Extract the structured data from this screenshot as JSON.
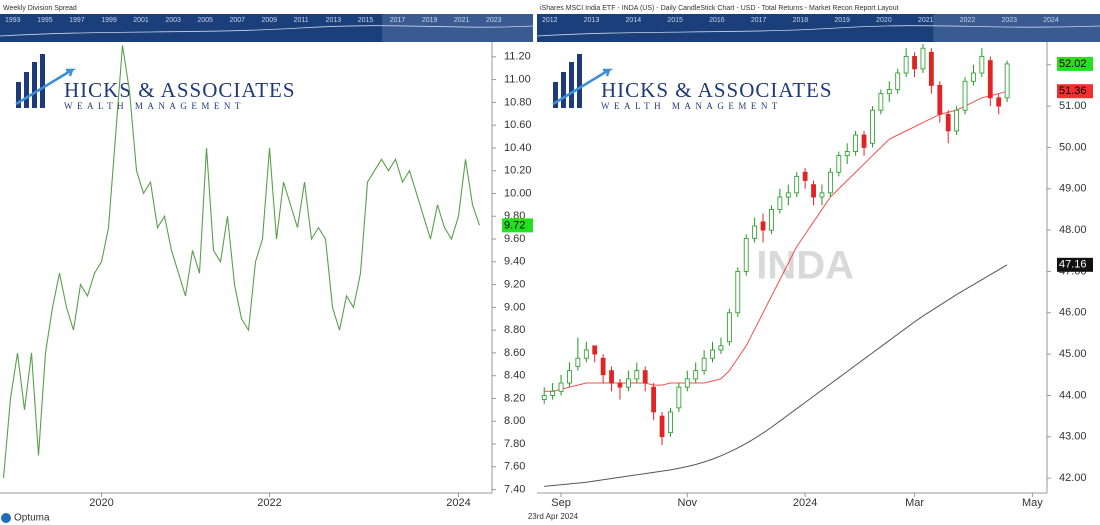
{
  "logo": {
    "name": "HICKS & ASSOCIATES",
    "tagline": "WEALTH MANAGEMENT"
  },
  "footer": {
    "brand": "Optuma",
    "date": "23rd Apr 2024"
  },
  "chart_data": [
    {
      "type": "line",
      "title": "Weekly Division Spread",
      "color": "#5aa04a",
      "navigator": [
        "1993",
        "1995",
        "1997",
        "1999",
        "2001",
        "2003",
        "2005",
        "2007",
        "2009",
        "2011",
        "2013",
        "2015",
        "2017",
        "2019",
        "2021",
        "2023"
      ],
      "categories": [
        null,
        null,
        null,
        null,
        null,
        null,
        null,
        null,
        null,
        null,
        null,
        null,
        null,
        null,
        "2020",
        null,
        null,
        null,
        null,
        null,
        null,
        null,
        null,
        null,
        null,
        null,
        null,
        null,
        null,
        null,
        null,
        null,
        null,
        null,
        null,
        null,
        null,
        null,
        "2022",
        null,
        null,
        null,
        null,
        null,
        null,
        null,
        null,
        null,
        null,
        null,
        null,
        null,
        null,
        null,
        null,
        null,
        null,
        null,
        null,
        null,
        null,
        null,
        null,
        null,
        null,
        "2024",
        null,
        null,
        null,
        null
      ],
      "values": [
        7.5,
        8.2,
        8.6,
        8.1,
        8.6,
        7.7,
        8.6,
        9.0,
        9.3,
        9.0,
        8.8,
        9.2,
        9.1,
        9.3,
        9.4,
        9.7,
        10.5,
        11.3,
        10.9,
        10.2,
        10.0,
        10.1,
        9.7,
        9.8,
        9.5,
        9.3,
        9.1,
        9.5,
        9.3,
        10.4,
        9.5,
        9.4,
        9.8,
        9.2,
        8.9,
        8.8,
        9.4,
        9.6,
        10.4,
        9.6,
        10.1,
        9.9,
        9.7,
        10.1,
        9.6,
        9.7,
        9.6,
        9.0,
        8.8,
        9.1,
        9.0,
        9.3,
        10.1,
        10.2,
        10.3,
        10.2,
        10.3,
        10.1,
        10.2,
        10.0,
        9.8,
        9.6,
        9.9,
        9.7,
        9.6,
        9.8,
        10.3,
        9.9,
        9.72,
        null
      ],
      "ylim": [
        7.37,
        11.33
      ],
      "yticks": [
        {
          "value": 7.4,
          "label": "7.40"
        },
        {
          "value": 7.6,
          "label": "7.60"
        },
        {
          "value": 7.8,
          "label": "7.80"
        },
        {
          "value": 8.0,
          "label": "8.00"
        },
        {
          "value": 8.2,
          "label": "8.20"
        },
        {
          "value": 8.4,
          "label": "8.40"
        },
        {
          "value": 8.6,
          "label": "8.60"
        },
        {
          "value": 8.8,
          "label": "8.80"
        },
        {
          "value": 9.0,
          "label": "9.00"
        },
        {
          "value": 9.2,
          "label": "9.20"
        },
        {
          "value": 9.4,
          "label": "9.40"
        },
        {
          "value": 9.6,
          "label": "9.60"
        },
        {
          "value": 9.8,
          "label": "9.80"
        },
        {
          "value": 10.0,
          "label": "10.00"
        },
        {
          "value": 10.2,
          "label": "10.20"
        },
        {
          "value": 10.4,
          "label": "10.40"
        },
        {
          "value": 10.6,
          "label": "10.60"
        },
        {
          "value": 10.8,
          "label": "10.80"
        },
        {
          "value": 11.0,
          "label": "11.00"
        },
        {
          "value": 11.2,
          "label": "11.20"
        }
      ],
      "last_color": "#22e022"
    },
    {
      "type": "candlestick",
      "title": "iShares MSCI India ETF - INDA (US) - Daily CandleStick Chart - USD - Total Returns - Market Recon Report Layout",
      "watermark": "INDA",
      "up_color": "#1f9a1f",
      "down_color": "#e02424",
      "navigator": [
        "2012",
        "2013",
        "2014",
        "2015",
        "2016",
        "2017",
        "2018",
        "2019",
        "2020",
        "2021",
        "2022",
        "2023",
        "2024"
      ],
      "categories": [
        null,
        null,
        "Sep",
        null,
        null,
        null,
        null,
        null,
        null,
        null,
        null,
        null,
        null,
        null,
        null,
        null,
        null,
        "Nov",
        null,
        null,
        null,
        null,
        null,
        null,
        null,
        null,
        null,
        null,
        null,
        null,
        null,
        "2024",
        null,
        null,
        null,
        null,
        null,
        null,
        null,
        null,
        null,
        null,
        null,
        null,
        "Mar",
        null,
        null,
        null,
        null,
        null,
        null,
        null,
        null,
        null,
        null,
        null,
        null,
        null,
        "May",
        null
      ],
      "open": [
        43.9,
        44.0,
        44.1,
        44.3,
        44.7,
        44.9,
        45.2,
        44.9,
        44.6,
        44.3,
        44.2,
        44.4,
        44.6,
        44.2,
        43.5,
        43.1,
        43.7,
        44.2,
        44.4,
        44.6,
        44.9,
        45.1,
        45.3,
        46.0,
        47.0,
        47.8,
        48.2,
        48.0,
        48.5,
        48.8,
        48.9,
        49.4,
        49.1,
        48.8,
        48.9,
        49.4,
        49.8,
        49.9,
        50.3,
        50.1,
        50.9,
        51.3,
        51.4,
        51.8,
        52.2,
        51.9,
        52.3,
        51.5,
        50.8,
        50.4,
        50.9,
        51.6,
        51.8,
        52.1,
        51.2,
        51.2,
        null,
        null,
        null,
        null
      ],
      "high": [
        44.2,
        44.3,
        44.5,
        44.8,
        45.4,
        45.3,
        45.2,
        45.0,
        44.7,
        44.4,
        44.6,
        44.8,
        44.7,
        44.3,
        43.6,
        43.7,
        44.3,
        44.6,
        44.8,
        45.1,
        45.3,
        45.4,
        46.1,
        47.1,
        47.9,
        48.3,
        48.4,
        48.6,
        49.0,
        49.1,
        49.4,
        49.5,
        49.2,
        49.1,
        49.5,
        49.9,
        50.1,
        50.4,
        50.4,
        51.0,
        51.4,
        51.6,
        51.9,
        52.4,
        52.3,
        52.5,
        52.4,
        51.6,
        50.9,
        51.0,
        51.7,
        52.0,
        52.4,
        52.2,
        51.3,
        52.1,
        null,
        null,
        null,
        null
      ],
      "low": [
        43.8,
        43.9,
        44.0,
        44.2,
        44.6,
        44.8,
        44.8,
        44.3,
        44.1,
        43.9,
        44.1,
        44.3,
        44.1,
        43.4,
        42.8,
        43.0,
        43.6,
        44.1,
        44.3,
        44.5,
        44.8,
        45.0,
        45.2,
        45.9,
        46.9,
        47.7,
        47.7,
        47.9,
        48.4,
        48.6,
        48.8,
        49.0,
        48.6,
        48.6,
        48.8,
        49.3,
        49.6,
        49.8,
        49.8,
        50.0,
        50.8,
        51.1,
        51.3,
        51.7,
        51.7,
        51.8,
        51.3,
        50.6,
        50.1,
        50.3,
        50.8,
        51.5,
        51.7,
        51.0,
        50.8,
        51.1,
        null,
        null,
        null,
        null
      ],
      "close": [
        44.0,
        44.1,
        44.3,
        44.6,
        44.9,
        45.1,
        45.0,
        44.5,
        44.3,
        44.2,
        44.4,
        44.6,
        44.3,
        43.6,
        43.0,
        43.6,
        44.2,
        44.4,
        44.6,
        44.9,
        45.1,
        45.2,
        46.0,
        47.0,
        47.8,
        48.1,
        48.0,
        48.5,
        48.8,
        48.9,
        49.3,
        49.2,
        48.8,
        48.9,
        49.4,
        49.8,
        49.9,
        50.3,
        50.0,
        50.9,
        51.3,
        51.4,
        51.8,
        52.2,
        51.9,
        52.4,
        51.5,
        50.8,
        50.4,
        50.9,
        51.6,
        51.8,
        52.2,
        51.2,
        51.0,
        52.02,
        null,
        null,
        null,
        null
      ],
      "overlays": [
        {
          "color": "#f05050",
          "values": [
            44.1,
            44.1,
            44.15,
            44.2,
            44.25,
            44.3,
            44.3,
            44.3,
            44.3,
            44.3,
            44.3,
            44.3,
            44.3,
            44.25,
            44.25,
            44.3,
            44.3,
            44.3,
            44.3,
            44.3,
            44.35,
            44.4,
            44.6,
            44.9,
            45.2,
            45.6,
            46.0,
            46.4,
            46.8,
            47.2,
            47.6,
            47.9,
            48.2,
            48.5,
            48.8,
            49.0,
            49.2,
            49.4,
            49.6,
            49.8,
            50.0,
            50.2,
            50.3,
            50.4,
            50.5,
            50.6,
            50.7,
            50.8,
            50.85,
            50.9,
            51.0,
            51.1,
            51.2,
            51.25,
            51.3,
            51.36,
            null,
            null,
            null,
            null
          ]
        },
        {
          "color": "#555555",
          "values": [
            41.8,
            41.82,
            41.84,
            41.86,
            41.88,
            41.9,
            41.93,
            41.96,
            41.99,
            42.02,
            42.05,
            42.08,
            42.11,
            42.14,
            42.17,
            42.2,
            42.24,
            42.28,
            42.33,
            42.39,
            42.46,
            42.54,
            42.63,
            42.73,
            42.84,
            42.96,
            43.09,
            43.23,
            43.38,
            43.53,
            43.68,
            43.83,
            43.98,
            44.13,
            44.28,
            44.43,
            44.58,
            44.73,
            44.88,
            45.03,
            45.18,
            45.33,
            45.48,
            45.63,
            45.78,
            45.92,
            46.05,
            46.18,
            46.31,
            46.44,
            46.56,
            46.68,
            46.8,
            46.92,
            47.04,
            47.16,
            null,
            null,
            null,
            null
          ]
        }
      ],
      "ylim": [
        41.64,
        52.55
      ],
      "yticks": [
        {
          "value": 42,
          "label": "42.00"
        },
        {
          "value": 43,
          "label": "43.00"
        },
        {
          "value": 44,
          "label": "44.00"
        },
        {
          "value": 45,
          "label": "45.00"
        },
        {
          "value": 46,
          "label": "46.00"
        },
        {
          "value": 47,
          "label": "47.00"
        },
        {
          "value": 48,
          "label": "48.00"
        },
        {
          "value": 49,
          "label": "49.00"
        },
        {
          "value": 50,
          "label": "50.00"
        },
        {
          "value": 51,
          "label": "51.00"
        },
        {
          "value": 52,
          "label": "52.00"
        }
      ],
      "last_colors": [
        "#22e022",
        "#f03030",
        "#111111"
      ]
    }
  ]
}
